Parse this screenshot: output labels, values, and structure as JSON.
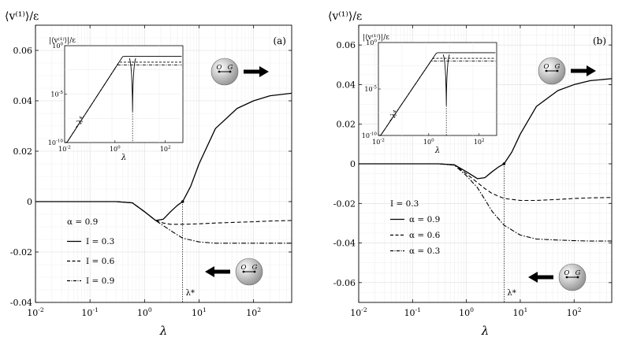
{
  "chart_data": [
    {
      "id": "a",
      "type": "line",
      "panel_label": "(a)",
      "ylabel": "⟨v⁽¹⁾⟩/ε",
      "xlabel": "λ",
      "xscale": "log",
      "xlim": [
        0.01,
        500
      ],
      "ylim": [
        -0.04,
        0.07
      ],
      "y_ticks": [
        -0.04,
        -0.02,
        0,
        0.02,
        0.04,
        0.06
      ],
      "y_tick_labels": [
        "-0.04",
        "-0.02",
        "0",
        "0.02",
        "0.04",
        "0.06"
      ],
      "x_ticks": [
        0.01,
        0.1,
        1,
        10,
        100
      ],
      "x_tick_labels": [
        {
          "base": "10",
          "exp": "-2"
        },
        {
          "base": "10",
          "exp": "-1"
        },
        {
          "base": "10",
          "exp": "0"
        },
        {
          "base": "10",
          "exp": "1"
        },
        {
          "base": "10",
          "exp": "2"
        }
      ],
      "legend_title": "α = 0.9",
      "series": [
        {
          "name": "I = 0.3",
          "style": "solid",
          "x": [
            0.01,
            0.3,
            0.6,
            1.0,
            1.6,
            2.2,
            3.0,
            4.0,
            5.0,
            7.0,
            10,
            20,
            50,
            100,
            200,
            500
          ],
          "y": [
            0,
            0,
            -0.0005,
            -0.004,
            -0.0075,
            -0.007,
            -0.004,
            -0.0015,
            0,
            0.006,
            0.015,
            0.029,
            0.037,
            0.04,
            0.042,
            0.043
          ]
        },
        {
          "name": "I = 0.6",
          "style": "dashed",
          "x": [
            0.01,
            0.3,
            0.6,
            1.0,
            1.6,
            2.2,
            3.0,
            5.0,
            10,
            20,
            50,
            100,
            200,
            500
          ],
          "y": [
            0,
            0,
            -0.0005,
            -0.004,
            -0.0075,
            -0.0085,
            -0.009,
            -0.009,
            -0.0088,
            -0.0085,
            -0.0082,
            -0.008,
            -0.0077,
            -0.0075
          ]
        },
        {
          "name": "I = 0.9",
          "style": "dashdot",
          "x": [
            0.01,
            0.3,
            0.6,
            1.0,
            1.6,
            2.2,
            3.0,
            5.0,
            10,
            20,
            50,
            100,
            200,
            500
          ],
          "y": [
            0,
            0,
            -0.0005,
            -0.004,
            -0.0075,
            -0.0095,
            -0.0115,
            -0.0145,
            -0.016,
            -0.0165,
            -0.0165,
            -0.0165,
            -0.0165,
            -0.0165
          ]
        }
      ],
      "marker": {
        "x": 5.0,
        "y": 0
      },
      "vline": {
        "x": 5.0,
        "label": "λ*"
      },
      "inset": {
        "ylabel": "|⟨v⁽¹⁾⟩|/ε",
        "xlabel": "λ",
        "slope_label": "~λ⁴",
        "x_tick_labels": [
          {
            "base": "10",
            "exp": "-2"
          },
          {
            "base": "10",
            "exp": "0"
          },
          {
            "base": "10",
            "exp": "2"
          }
        ],
        "y_tick_labels": [
          {
            "base": "10",
            "exp": "0"
          },
          {
            "base": "10",
            "exp": "-5"
          },
          {
            "base": "10",
            "exp": "-10"
          }
        ]
      },
      "icons": [
        {
          "label_o": "O",
          "label_g": "G",
          "direction": "right"
        },
        {
          "label_o": "O",
          "label_g": "G",
          "direction": "left"
        }
      ]
    },
    {
      "id": "b",
      "type": "line",
      "panel_label": "(b)",
      "ylabel": "⟨v⁽¹⁾⟩/ε",
      "xlabel": "λ",
      "xscale": "log",
      "xlim": [
        0.01,
        500
      ],
      "ylim": [
        -0.07,
        0.07
      ],
      "y_ticks": [
        -0.06,
        -0.04,
        -0.02,
        0,
        0.02,
        0.04,
        0.06
      ],
      "y_tick_labels": [
        "-0.06",
        "-0.04",
        "-0.02",
        "0",
        "0.02",
        "0.04",
        "0.06"
      ],
      "x_ticks": [
        0.01,
        0.1,
        1,
        10,
        100
      ],
      "x_tick_labels": [
        {
          "base": "10",
          "exp": "-2"
        },
        {
          "base": "10",
          "exp": "-1"
        },
        {
          "base": "10",
          "exp": "0"
        },
        {
          "base": "10",
          "exp": "1"
        },
        {
          "base": "10",
          "exp": "2"
        }
      ],
      "legend_title": "I = 0.3",
      "series": [
        {
          "name": "α = 0.9",
          "style": "solid",
          "x": [
            0.01,
            0.3,
            0.6,
            1.0,
            1.6,
            2.2,
            3.0,
            4.0,
            5.0,
            7.0,
            10,
            20,
            50,
            100,
            200,
            500
          ],
          "y": [
            0,
            0,
            -0.0005,
            -0.004,
            -0.0075,
            -0.007,
            -0.004,
            -0.0015,
            0,
            0.006,
            0.015,
            0.029,
            0.037,
            0.04,
            0.042,
            0.043
          ]
        },
        {
          "name": "α = 0.6",
          "style": "dashed",
          "x": [
            0.01,
            0.3,
            0.6,
            1.0,
            1.6,
            2.2,
            3.0,
            5.0,
            10,
            20,
            50,
            100,
            200,
            500
          ],
          "y": [
            0,
            0,
            -0.0006,
            -0.005,
            -0.0095,
            -0.0125,
            -0.015,
            -0.0175,
            -0.0185,
            -0.0185,
            -0.018,
            -0.0175,
            -0.0172,
            -0.017
          ]
        },
        {
          "name": "α = 0.3",
          "style": "dashdot",
          "x": [
            0.01,
            0.3,
            0.6,
            1.0,
            1.6,
            2.2,
            3.0,
            5.0,
            10,
            20,
            50,
            100,
            200,
            500
          ],
          "y": [
            0,
            0,
            -0.0007,
            -0.006,
            -0.012,
            -0.018,
            -0.024,
            -0.031,
            -0.036,
            -0.038,
            -0.0385,
            -0.0388,
            -0.039,
            -0.039
          ]
        }
      ],
      "marker": {
        "x": 5.0,
        "y": 0
      },
      "vline": {
        "x": 5.0,
        "label": "λ*"
      },
      "inset": {
        "ylabel": "|⟨v⁽¹⁾⟩|/ε",
        "xlabel": "λ",
        "slope_label": "~λ⁴",
        "x_tick_labels": [
          {
            "base": "10",
            "exp": "-2"
          },
          {
            "base": "10",
            "exp": "0"
          },
          {
            "base": "10",
            "exp": "2"
          }
        ],
        "y_tick_labels": [
          {
            "base": "10",
            "exp": "0"
          },
          {
            "base": "10",
            "exp": "-5"
          },
          {
            "base": "10",
            "exp": "-10"
          }
        ]
      },
      "icons": [
        {
          "label_o": "O",
          "label_g": "G",
          "direction": "right"
        },
        {
          "label_o": "O",
          "label_g": "G",
          "direction": "left"
        }
      ]
    }
  ]
}
